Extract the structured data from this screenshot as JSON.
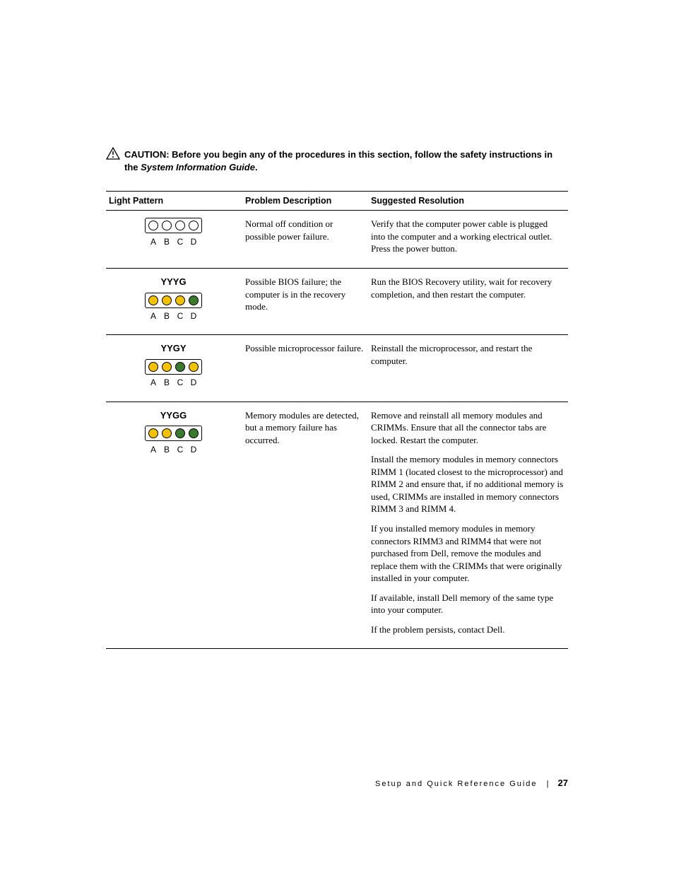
{
  "colors": {
    "yellow": "#f2c200",
    "green": "#3a7a2e",
    "off": "#ffffff"
  },
  "caution": {
    "prefix": "CAUTION: ",
    "line1": "Before you begin any of the procedures in this section, follow the safety instructions in the ",
    "italic": "System Information Guide",
    "suffix": "."
  },
  "table": {
    "headers": {
      "pattern": "Light Pattern",
      "problem": "Problem Description",
      "resolution": "Suggested Resolution"
    },
    "labels": [
      "A",
      "B",
      "C",
      "D"
    ],
    "rows": [
      {
        "code": "",
        "lights": [
          "off",
          "off",
          "off",
          "off"
        ],
        "problem": "Normal off condition or possible power failure.",
        "resolutions": [
          "Verify that the computer power cable is plugged into the computer and a working electrical outlet. Press the power button."
        ]
      },
      {
        "code": "YYYG",
        "lights": [
          "yellow",
          "yellow",
          "yellow",
          "green"
        ],
        "problem": "Possible BIOS failure; the computer is in the recovery mode.",
        "resolutions": [
          "Run the BIOS Recovery utility, wait for recovery completion, and then restart the computer."
        ]
      },
      {
        "code": "YYGY",
        "lights": [
          "yellow",
          "yellow",
          "green",
          "yellow"
        ],
        "problem": "Possible microprocessor failure.",
        "resolutions": [
          "Reinstall the microprocessor, and restart the computer."
        ]
      },
      {
        "code": "YYGG",
        "lights": [
          "yellow",
          "yellow",
          "green",
          "green"
        ],
        "problem": "Memory modules are detected, but a memory failure has occurred.",
        "resolutions": [
          "Remove and reinstall all memory modules and CRIMMs. Ensure that all the connector tabs are locked. Restart the computer.",
          "Install the memory modules in memory connectors RIMM 1 (located closest to the microprocessor) and RIMM 2 and ensure that, if no additional memory is used, CRIMMs are installed in memory connectors RIMM 3 and RIMM 4.",
          "If you installed memory modules in memory connectors RIMM3 and RIMM4 that were not purchased from Dell, remove the modules and replace them with the CRIMMs that were originally installed in your computer.",
          "If available, install Dell memory of the same type into your computer.",
          "If the problem persists, contact Dell."
        ]
      }
    ]
  },
  "footer": {
    "title": "Setup and Quick Reference Guide",
    "page": "27"
  }
}
